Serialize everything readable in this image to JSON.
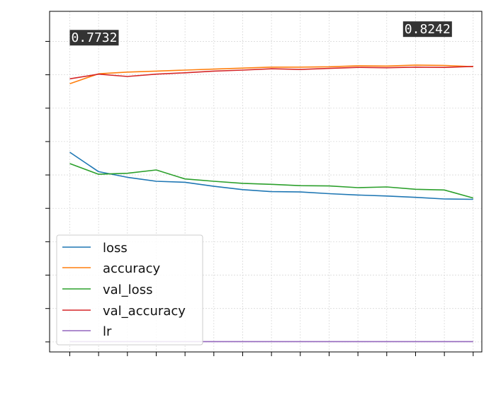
{
  "chart_data": {
    "type": "line",
    "title": "",
    "xlabel": "",
    "ylabel": "",
    "x": [
      0,
      1,
      2,
      3,
      4,
      5,
      6,
      7,
      8,
      9,
      10,
      11,
      12,
      13,
      14
    ],
    "xlim": [
      -0.7,
      14.3
    ],
    "ylim": [
      -0.03,
      0.99
    ],
    "grid": true,
    "legend_position": "lower-left",
    "series": [
      {
        "name": "loss",
        "color": "#1f77b4",
        "values": [
          0.568,
          0.51,
          0.493,
          0.481,
          0.478,
          0.466,
          0.456,
          0.45,
          0.449,
          0.444,
          0.44,
          0.437,
          0.433,
          0.428,
          0.427
        ]
      },
      {
        "name": "accuracy",
        "color": "#ff7f0e",
        "values": [
          0.7732,
          0.803,
          0.808,
          0.811,
          0.814,
          0.817,
          0.82,
          0.823,
          0.823,
          0.824,
          0.827,
          0.826,
          0.829,
          0.828,
          0.8242
        ]
      },
      {
        "name": "val_loss",
        "color": "#2ca02c",
        "values": [
          0.534,
          0.502,
          0.505,
          0.515,
          0.488,
          0.481,
          0.475,
          0.472,
          0.468,
          0.467,
          0.462,
          0.464,
          0.457,
          0.455,
          0.431
        ]
      },
      {
        "name": "val_accuracy",
        "color": "#d62728",
        "values": [
          0.788,
          0.802,
          0.795,
          0.802,
          0.806,
          0.811,
          0.814,
          0.818,
          0.816,
          0.819,
          0.822,
          0.821,
          0.823,
          0.822,
          0.825
        ]
      },
      {
        "name": "lr",
        "color": "#9467bd",
        "values": [
          0.001,
          0.001,
          0.001,
          0.001,
          0.001,
          0.001,
          0.001,
          0.001,
          0.001,
          0.001,
          0.001,
          0.001,
          0.001,
          0.001,
          0.001
        ]
      }
    ],
    "annotations": [
      {
        "text": "0.7732",
        "x": 0,
        "y": 0.7732
      },
      {
        "text": "0.8242",
        "x": 14,
        "y": 0.8242
      }
    ]
  },
  "legend": {
    "items": [
      "loss",
      "accuracy",
      "val_loss",
      "val_accuracy",
      "lr"
    ]
  }
}
